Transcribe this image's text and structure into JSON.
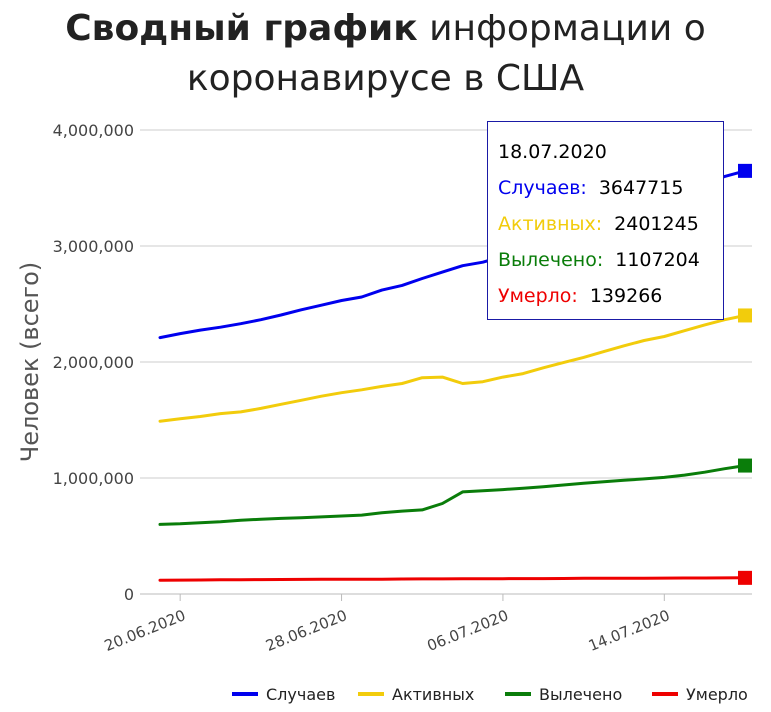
{
  "chart_data": {
    "type": "line",
    "title_bold": "Сводный график",
    "title_rest": " информации о коронавирусе в США",
    "ylabel": "Человек (всего)",
    "xlabel": "",
    "ylim": [
      0,
      4000000
    ],
    "yticks": [
      "0",
      "1,000,000",
      "2,000,000",
      "3,000,000",
      "4,000,000"
    ],
    "ytick_values": [
      0,
      1000000,
      2000000,
      3000000,
      4000000
    ],
    "xticks": [
      "20.06.2020",
      "28.06.2020",
      "06.07.2020",
      "14.07.2020"
    ],
    "xtick_index": [
      1,
      9,
      17,
      25
    ],
    "x": [
      "19.06.2020",
      "20.06.2020",
      "21.06.2020",
      "22.06.2020",
      "23.06.2020",
      "24.06.2020",
      "25.06.2020",
      "26.06.2020",
      "27.06.2020",
      "28.06.2020",
      "29.06.2020",
      "30.06.2020",
      "01.07.2020",
      "02.07.2020",
      "03.07.2020",
      "04.07.2020",
      "05.07.2020",
      "06.07.2020",
      "07.07.2020",
      "08.07.2020",
      "09.07.2020",
      "10.07.2020",
      "11.07.2020",
      "12.07.2020",
      "13.07.2020",
      "14.07.2020",
      "15.07.2020",
      "16.07.2020",
      "17.07.2020",
      "18.07.2020"
    ],
    "grid": true,
    "legend_position": "bottom",
    "series": [
      {
        "name": "Случаев",
        "color": "#0000ee",
        "values": [
          2210000,
          2245000,
          2275000,
          2300000,
          2330000,
          2365000,
          2405000,
          2450000,
          2490000,
          2530000,
          2560000,
          2620000,
          2660000,
          2720000,
          2775000,
          2830000,
          2860000,
          2910000,
          2970000,
          3030000,
          3100000,
          3160000,
          3230000,
          3290000,
          3350000,
          3410000,
          3480000,
          3540000,
          3600000,
          3647715
        ]
      },
      {
        "name": "Активных",
        "color": "#f2cc0c",
        "values": [
          1490000,
          1510000,
          1530000,
          1555000,
          1570000,
          1600000,
          1635000,
          1670000,
          1705000,
          1735000,
          1760000,
          1790000,
          1815000,
          1865000,
          1870000,
          1815000,
          1830000,
          1870000,
          1900000,
          1950000,
          1995000,
          2040000,
          2090000,
          2140000,
          2185000,
          2220000,
          2270000,
          2320000,
          2365000,
          2401245
        ]
      },
      {
        "name": "Вылечено",
        "color": "#0a7d0a",
        "values": [
          600000,
          605000,
          615000,
          622000,
          635000,
          645000,
          652000,
          658000,
          665000,
          672000,
          680000,
          700000,
          715000,
          725000,
          780000,
          880000,
          890000,
          900000,
          912000,
          925000,
          940000,
          955000,
          968000,
          980000,
          992000,
          1005000,
          1025000,
          1050000,
          1080000,
          1107204
        ]
      },
      {
        "name": "Умерло",
        "color": "#ee0000",
        "values": [
          119000,
          120000,
          121000,
          122000,
          123000,
          124000,
          125000,
          126000,
          126500,
          127000,
          127500,
          128000,
          129000,
          130000,
          130500,
          131000,
          131500,
          132000,
          132500,
          133000,
          134000,
          135000,
          135500,
          136000,
          136500,
          137000,
          137500,
          138000,
          138500,
          139266
        ]
      }
    ]
  },
  "tooltip": {
    "date": "18.07.2020",
    "rows": [
      {
        "label": "Случаев:",
        "value": "3647715",
        "color": "#0000ee"
      },
      {
        "label": "Активных:",
        "value": "2401245",
        "color": "#f2cc0c"
      },
      {
        "label": "Вылечено:",
        "value": "1107204",
        "color": "#0a7d0a"
      },
      {
        "label": "Умерло:",
        "value": "139266",
        "color": "#ee0000"
      }
    ]
  }
}
